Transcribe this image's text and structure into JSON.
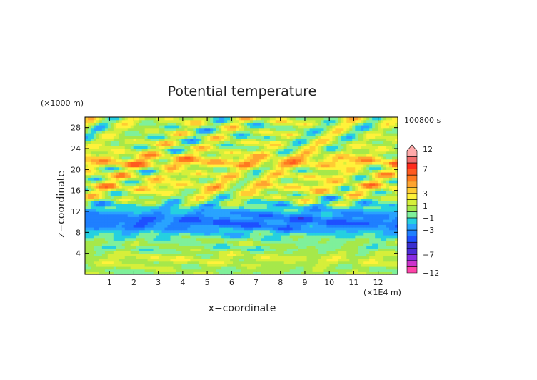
{
  "chart_data": {
    "type": "heatmap",
    "title": "Potential temperature",
    "xlabel": "x−coordinate",
    "ylabel": "z−coordinate",
    "x_unit_label": "(×1E4 m)",
    "y_unit_label": "(×1000 m)",
    "time_label": "100800 s",
    "x_ticks": [
      "1",
      "2",
      "3",
      "4",
      "5",
      "6",
      "7",
      "8",
      "9",
      "10",
      "11",
      "12"
    ],
    "y_ticks": [
      "4",
      "8",
      "12",
      "16",
      "20",
      "24",
      "28"
    ],
    "xlim": [
      0,
      12.8
    ],
    "ylim": [
      0,
      30
    ],
    "colorbar": {
      "tick_labels": [
        "12",
        "7",
        "3",
        "1",
        "−1",
        "−3",
        "−7",
        "−12"
      ],
      "levels": [
        -12,
        -10,
        -8,
        -7,
        -6,
        -5,
        -4,
        -3,
        -2,
        -1,
        0,
        1,
        2,
        3,
        4,
        5,
        6,
        7,
        8,
        10,
        12
      ],
      "colors": [
        "#ff44aa",
        "#cc33cc",
        "#8a2be2",
        "#4b2bd6",
        "#3a2fd0",
        "#1e50ff",
        "#1f7fff",
        "#29a3ff",
        "#25d0e0",
        "#7ff09a",
        "#a6e84a",
        "#d6ef3a",
        "#fff23a",
        "#ffcc33",
        "#ffa430",
        "#ff7a20",
        "#ff5a20",
        "#ff2b1c",
        "#f26e6e",
        "#ffaaaa"
      ]
    },
    "bands": [
      {
        "z": 1,
        "value": 0.3
      },
      {
        "z": 2,
        "value": 0.9
      },
      {
        "z": 3,
        "value": 1.4
      },
      {
        "z": 4,
        "value": 0.7
      },
      {
        "z": 5,
        "value": -0.4
      },
      {
        "z": 6,
        "value": 0.2
      },
      {
        "z": 7,
        "value": -0.6
      },
      {
        "z": 8,
        "value": -1.6
      },
      {
        "z": 9,
        "value": -3.2
      },
      {
        "z": 10,
        "value": -3.8
      },
      {
        "z": 11,
        "value": -3.4
      },
      {
        "z": 12,
        "value": -2.3
      },
      {
        "z": 13,
        "value": -1.1
      },
      {
        "z": 14,
        "value": 0.1
      },
      {
        "z": 15,
        "value": 0.8
      },
      {
        "z": 16,
        "value": 1.6
      },
      {
        "z": 17,
        "value": 2.6
      },
      {
        "z": 18,
        "value": 1.2
      },
      {
        "z": 19,
        "value": 2.2
      },
      {
        "z": 20,
        "value": 0.4
      },
      {
        "z": 21,
        "value": 3.6
      },
      {
        "z": 22,
        "value": 3.1
      },
      {
        "z": 23,
        "value": 1.8
      },
      {
        "z": 24,
        "value": 0.6
      },
      {
        "z": 25,
        "value": 1.3
      },
      {
        "z": 26,
        "value": 0.3
      },
      {
        "z": 27,
        "value": 0.9
      },
      {
        "z": 28,
        "value": 0.2
      },
      {
        "z": 29,
        "value": 1.1
      }
    ]
  }
}
